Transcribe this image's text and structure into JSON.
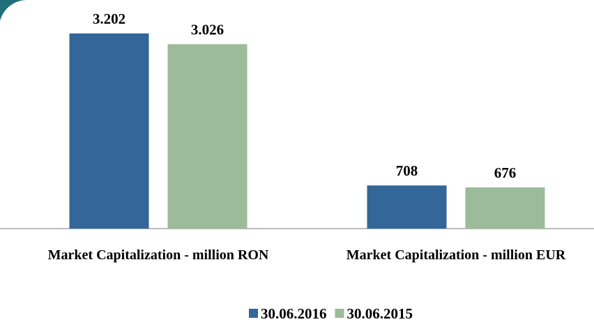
{
  "chart_data": {
    "type": "bar",
    "categories": [
      "Market Capitalization - million RON",
      "Market Capitalization - million EUR"
    ],
    "series": [
      {
        "name": "30.06.2016",
        "color": "#336699",
        "values": [
          3202,
          708
        ],
        "value_labels": [
          "3.202",
          "708"
        ]
      },
      {
        "name": "30.06.2015",
        "color": "#9bbb99",
        "values": [
          3026,
          676
        ],
        "value_labels": [
          "3.026",
          "676"
        ]
      }
    ],
    "legend": "bottom"
  }
}
